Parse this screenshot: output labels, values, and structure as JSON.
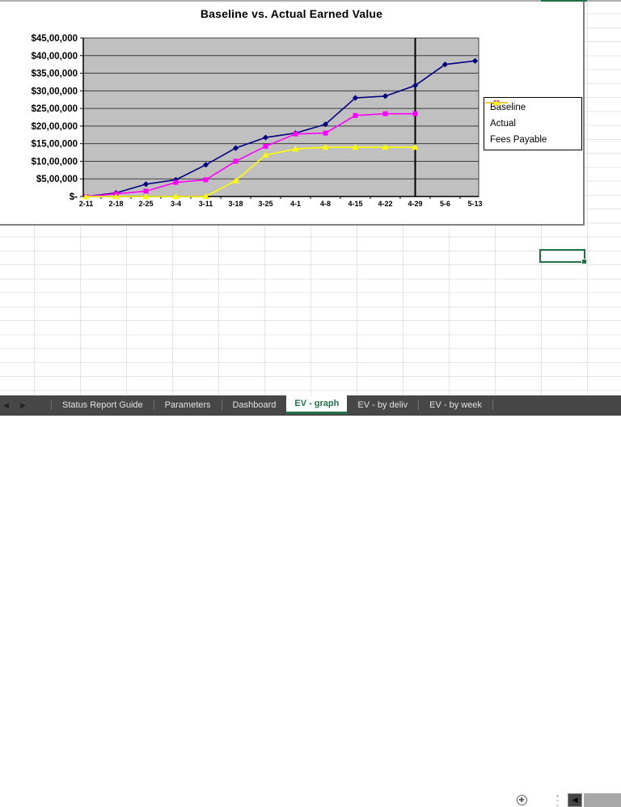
{
  "chart_data": {
    "type": "line",
    "title": "Baseline vs. Actual Earned Value",
    "xlabel": "",
    "ylabel": "",
    "categories": [
      "2-11",
      "2-18",
      "2-25",
      "3-4",
      "3-11",
      "3-18",
      "3-25",
      "4-1",
      "4-8",
      "4-15",
      "4-22",
      "4-29",
      "5-6",
      "5-13"
    ],
    "series": [
      {
        "name": "Baseline",
        "color": "#000080",
        "marker": "diamond",
        "values": [
          0,
          100000,
          350000,
          475000,
          900000,
          1375000,
          1675000,
          1800000,
          2050000,
          2800000,
          2850000,
          3150000,
          3750000,
          3850000
        ]
      },
      {
        "name": "Actual",
        "color": "#FF00FF",
        "marker": "square",
        "values": [
          0,
          75000,
          150000,
          400000,
          475000,
          1000000,
          1425000,
          1775000,
          1800000,
          2300000,
          2350000,
          2350000,
          null,
          null
        ]
      },
      {
        "name": "Fees Payable",
        "color": "#FFFF00",
        "marker": "triangle",
        "values": [
          0,
          0,
          0,
          0,
          0,
          450000,
          1175000,
          1350000,
          1400000,
          1400000,
          1400000,
          1400000,
          null,
          null
        ]
      }
    ],
    "ylim": [
      0,
      4500000
    ],
    "ytick_step": 500000,
    "ytick_labels": [
      "$45,00,000",
      "$40,00,000",
      "$35,00,000",
      "$30,00,000",
      "$25,00,000",
      "$20,00,000",
      "$15,00,000",
      "$10,00,000",
      "$5,00,000",
      "$-"
    ],
    "legend_position": "right",
    "grid": "horizontal",
    "plot_bg": "#C0C0C0",
    "status_line_category": "4-29"
  },
  "sheet_tabs": {
    "nav_left_glyph": "◀",
    "nav_right_glyph": "▶",
    "scroll_left_glyph": "◀",
    "active_color": "#217346",
    "items": [
      {
        "label": "Status Report Guide",
        "active": false
      },
      {
        "label": "Parameters",
        "active": false
      },
      {
        "label": "Dashboard",
        "active": false
      },
      {
        "label": "EV - graph",
        "active": true
      },
      {
        "label": "EV - by deliv",
        "active": false
      },
      {
        "label": "EV - by week",
        "active": false
      }
    ]
  },
  "worksheet": {
    "selection_color": "#217346"
  }
}
